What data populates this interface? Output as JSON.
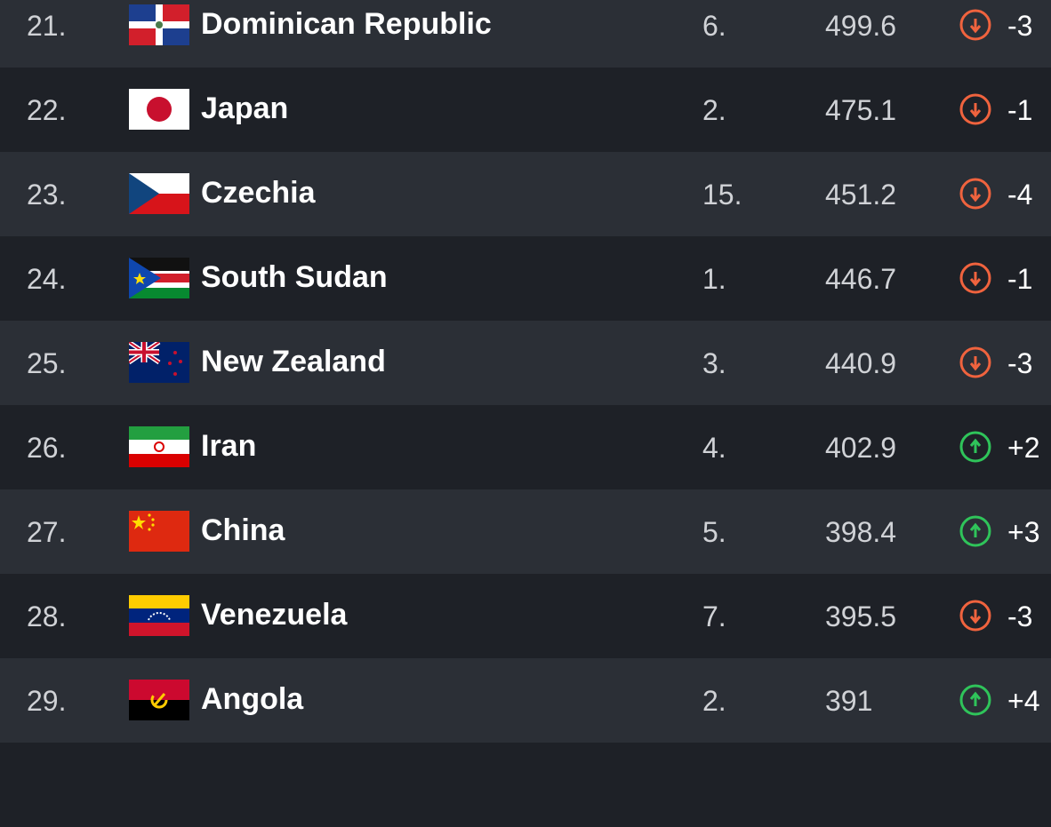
{
  "colors": {
    "down": "#f0633e",
    "up": "#2fc45a"
  },
  "rows": [
    {
      "rank": "21.",
      "country": "Dominican Republic",
      "flag": "dominican-republic-flag",
      "prev": "6.",
      "score": "499.6",
      "trend": "down",
      "change": "-3"
    },
    {
      "rank": "22.",
      "country": "Japan",
      "flag": "japan-flag",
      "prev": "2.",
      "score": "475.1",
      "trend": "down",
      "change": "-1"
    },
    {
      "rank": "23.",
      "country": "Czechia",
      "flag": "czechia-flag",
      "prev": "15.",
      "score": "451.2",
      "trend": "down",
      "change": "-4"
    },
    {
      "rank": "24.",
      "country": "South Sudan",
      "flag": "south-sudan-flag",
      "prev": "1.",
      "score": "446.7",
      "trend": "down",
      "change": "-1"
    },
    {
      "rank": "25.",
      "country": "New Zealand",
      "flag": "new-zealand-flag",
      "prev": "3.",
      "score": "440.9",
      "trend": "down",
      "change": "-3"
    },
    {
      "rank": "26.",
      "country": "Iran",
      "flag": "iran-flag",
      "prev": "4.",
      "score": "402.9",
      "trend": "up",
      "change": "+2"
    },
    {
      "rank": "27.",
      "country": "China",
      "flag": "china-flag",
      "prev": "5.",
      "score": "398.4",
      "trend": "up",
      "change": "+3"
    },
    {
      "rank": "28.",
      "country": "Venezuela",
      "flag": "venezuela-flag",
      "prev": "7.",
      "score": "395.5",
      "trend": "down",
      "change": "-3"
    },
    {
      "rank": "29.",
      "country": "Angola",
      "flag": "angola-flag",
      "prev": "2.",
      "score": "391",
      "trend": "up",
      "change": "+4"
    }
  ]
}
